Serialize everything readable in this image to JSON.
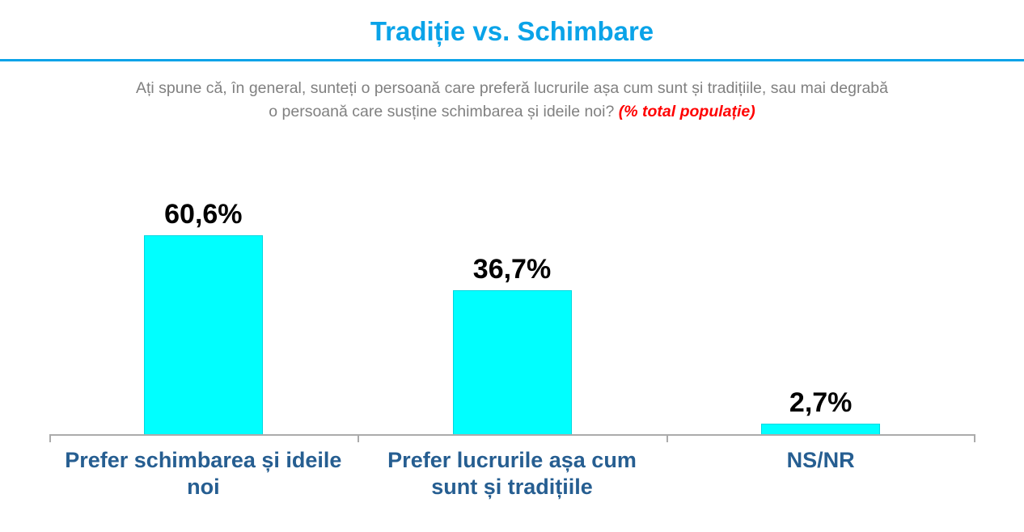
{
  "header": {
    "title": "Tradiție vs. Schimbare"
  },
  "question": {
    "line1": "Ați spune că, în general, sunteți o persoană care preferă lucrurile așa cum sunt și tradițiile, sau mai degrabă",
    "line2": "o persoană care susține schimbarea și ideile noi?",
    "note": "(% total populație)"
  },
  "chart_data": {
    "type": "bar",
    "title": "Tradiție vs. Schimbare",
    "categories": [
      "Prefer schimbarea și ideile noi",
      "Prefer lucrurile așa cum sunt și tradițiile",
      "NS/NR"
    ],
    "values": [
      60.6,
      36.7,
      2.7
    ],
    "value_labels": [
      "60,6%",
      "36,7%",
      "2,7%"
    ],
    "xlabel": "",
    "ylabel": "",
    "ylim": [
      0,
      62
    ],
    "grid": false,
    "legend": false,
    "bar_color": "#00ffff",
    "unit": "% total populație"
  },
  "colors": {
    "title_blue": "#0aa3e8",
    "bar_fill": "#00ffff",
    "bar_border": "#00d7e0",
    "category_label": "#265e91",
    "question_gray": "#808080",
    "note_red": "#ff0000",
    "axis_gray": "#ababab",
    "value_label": "#000000"
  }
}
